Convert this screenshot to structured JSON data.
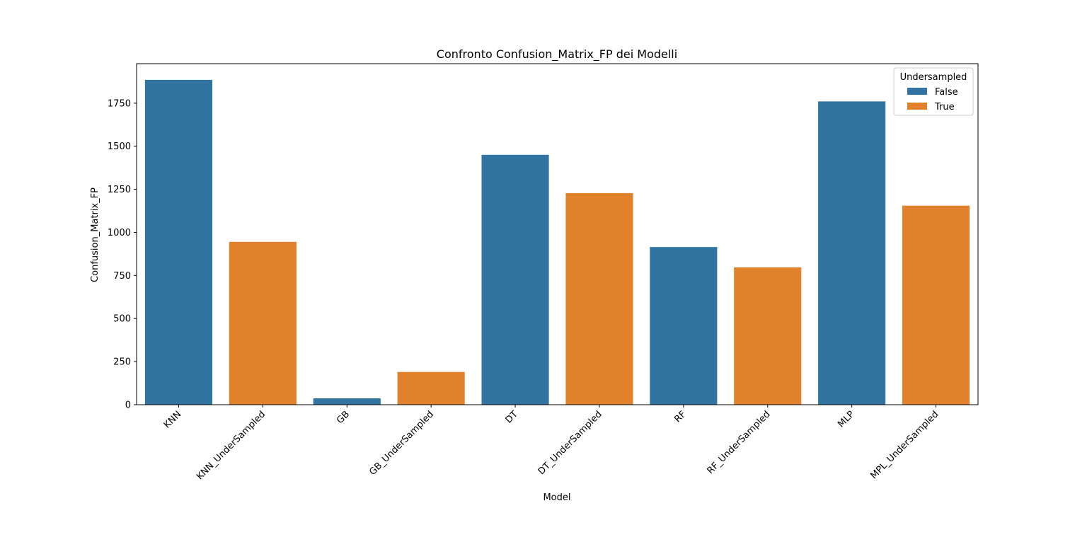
{
  "chart_data": {
    "type": "bar",
    "title": "Confronto Confusion_Matrix_FP dei Modelli",
    "xlabel": "Model",
    "ylabel": "Confusion_Matrix_FP",
    "categories": [
      "KNN",
      "KNN_UnderSampled",
      "GB",
      "GB_UnderSampled",
      "DT",
      "DT_UnderSampled",
      "RF",
      "RF_UnderSampled",
      "MLP",
      "MPL_UnderSampled"
    ],
    "values": [
      1885,
      945,
      37,
      190,
      1450,
      1228,
      915,
      797,
      1760,
      1155
    ],
    "hue": [
      false,
      true,
      false,
      true,
      false,
      true,
      false,
      true,
      false,
      true
    ],
    "ylim": [
      0,
      1979
    ],
    "yticks": [
      0,
      250,
      500,
      750,
      1000,
      1250,
      1500,
      1750
    ],
    "grid": false,
    "legend": {
      "title": "Undersampled",
      "placement": "top-right",
      "entries": [
        {
          "label": "False",
          "color": "#3274a1"
        },
        {
          "label": "True",
          "color": "#e1812c"
        }
      ]
    }
  }
}
